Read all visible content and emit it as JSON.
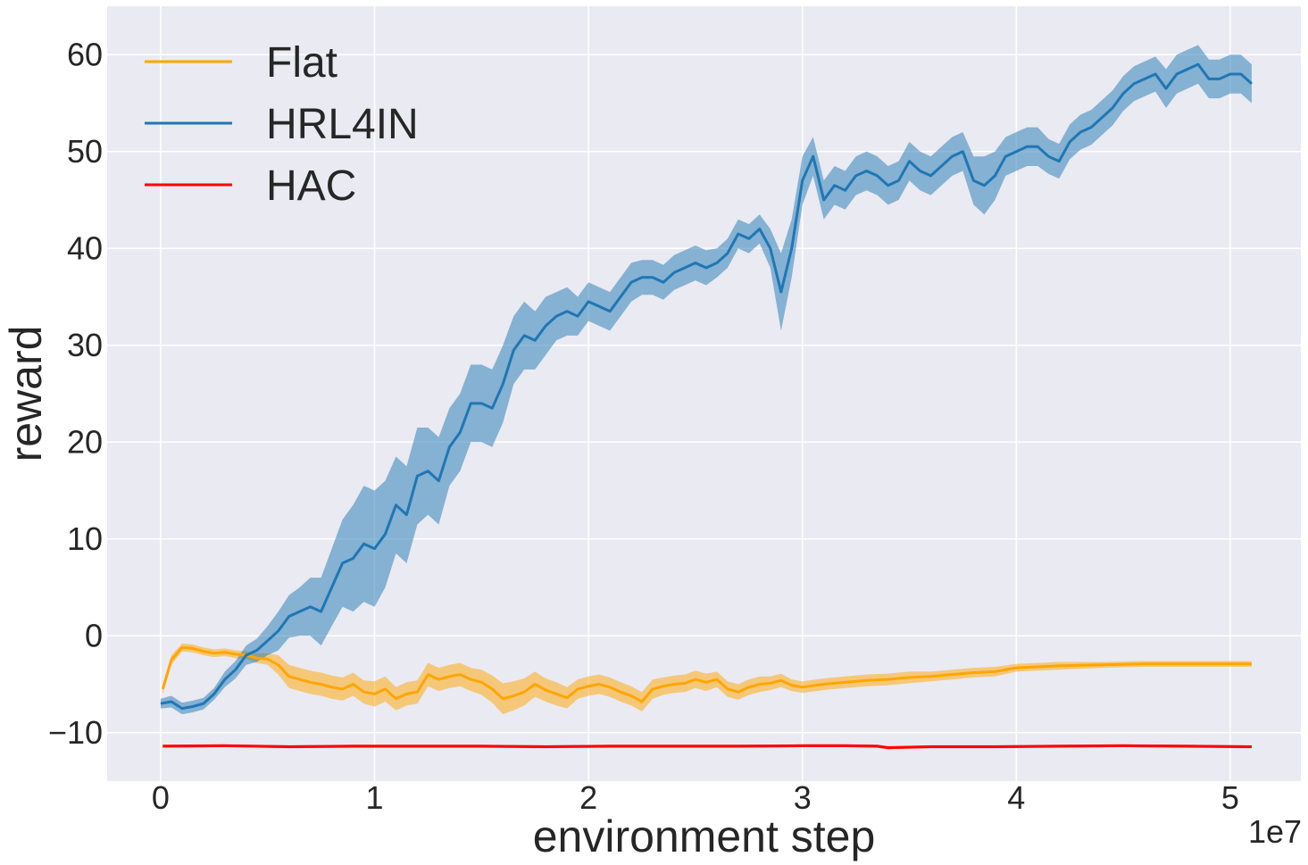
{
  "chart_data": {
    "type": "line",
    "xlabel": "environment step",
    "ylabel": "reward",
    "x_offset_label": "1e7",
    "xlim": [
      -0.25,
      5.33
    ],
    "ylim": [
      -15,
      65
    ],
    "xticks": [
      0,
      1,
      2,
      3,
      4,
      5
    ],
    "xtick_labels": [
      "0",
      "1",
      "2",
      "3",
      "4",
      "5"
    ],
    "yticks": [
      -10,
      0,
      10,
      20,
      30,
      40,
      50,
      60
    ],
    "ytick_labels": [
      "−10",
      "0",
      "10",
      "20",
      "30",
      "40",
      "50",
      "60"
    ],
    "grid": true,
    "legend_position": "upper-left",
    "background_color": "#eaeaf2",
    "series": [
      {
        "name": "Flat",
        "color": "#ffa500",
        "x": [
          0.01,
          0.05,
          0.1,
          0.15,
          0.2,
          0.25,
          0.3,
          0.35,
          0.4,
          0.45,
          0.5,
          0.55,
          0.6,
          0.65,
          0.7,
          0.75,
          0.8,
          0.85,
          0.9,
          0.95,
          1.0,
          1.05,
          1.1,
          1.15,
          1.2,
          1.25,
          1.3,
          1.35,
          1.4,
          1.45,
          1.5,
          1.55,
          1.6,
          1.65,
          1.7,
          1.75,
          1.8,
          1.85,
          1.9,
          1.95,
          2.0,
          2.05,
          2.1,
          2.15,
          2.2,
          2.25,
          2.3,
          2.35,
          2.4,
          2.45,
          2.5,
          2.55,
          2.6,
          2.65,
          2.7,
          2.75,
          2.8,
          2.85,
          2.9,
          2.95,
          3.0,
          3.1,
          3.2,
          3.3,
          3.4,
          3.5,
          3.6,
          3.7,
          3.8,
          3.9,
          4.0,
          4.2,
          4.4,
          4.6,
          4.8,
          5.0,
          5.1
        ],
        "values": [
          -5.5,
          -2.5,
          -1.2,
          -1.3,
          -1.6,
          -1.8,
          -1.7,
          -1.9,
          -2.0,
          -2.3,
          -2.4,
          -3.0,
          -4.2,
          -4.5,
          -4.8,
          -5.0,
          -5.3,
          -5.5,
          -5.0,
          -5.8,
          -6.0,
          -5.5,
          -6.5,
          -6.0,
          -5.8,
          -4.0,
          -4.5,
          -4.2,
          -4.0,
          -4.5,
          -4.8,
          -5.5,
          -6.5,
          -6.2,
          -5.8,
          -5.0,
          -5.6,
          -6.0,
          -6.4,
          -5.5,
          -5.2,
          -5.0,
          -5.3,
          -5.8,
          -6.2,
          -6.8,
          -5.5,
          -5.2,
          -5.0,
          -4.9,
          -4.5,
          -4.8,
          -4.5,
          -5.5,
          -5.8,
          -5.3,
          -5.0,
          -4.9,
          -4.6,
          -5.1,
          -5.3,
          -5.0,
          -4.8,
          -4.6,
          -4.5,
          -4.3,
          -4.2,
          -4.0,
          -3.8,
          -3.7,
          -3.3,
          -3.1,
          -3.0,
          -2.9,
          -2.9,
          -2.9,
          -2.9
        ],
        "spread": [
          0.5,
          0.5,
          0.4,
          0.4,
          0.4,
          0.4,
          0.4,
          0.4,
          0.4,
          0.5,
          0.6,
          1.0,
          1.2,
          1.2,
          1.2,
          1.2,
          1.2,
          1.2,
          1.2,
          1.2,
          1.3,
          1.3,
          1.2,
          1.2,
          1.2,
          1.2,
          1.2,
          1.2,
          1.2,
          1.2,
          1.3,
          1.4,
          1.6,
          1.5,
          1.4,
          1.3,
          1.2,
          1.2,
          1.1,
          1.0,
          1.0,
          1.0,
          1.0,
          1.0,
          1.0,
          1.0,
          1.0,
          0.9,
          0.9,
          0.9,
          0.9,
          0.9,
          0.8,
          0.8,
          0.8,
          0.8,
          0.8,
          0.7,
          0.7,
          0.6,
          0.6,
          0.6,
          0.6,
          0.6,
          0.6,
          0.6,
          0.5,
          0.5,
          0.5,
          0.5,
          0.4,
          0.4,
          0.3,
          0.3,
          0.3,
          0.3,
          0.3
        ]
      },
      {
        "name": "HRL4IN",
        "color": "#1f77b4",
        "x": [
          0.0,
          0.05,
          0.1,
          0.15,
          0.2,
          0.25,
          0.3,
          0.35,
          0.4,
          0.45,
          0.5,
          0.55,
          0.6,
          0.65,
          0.7,
          0.75,
          0.8,
          0.85,
          0.9,
          0.95,
          1.0,
          1.05,
          1.1,
          1.15,
          1.2,
          1.25,
          1.3,
          1.35,
          1.4,
          1.45,
          1.5,
          1.55,
          1.6,
          1.65,
          1.7,
          1.75,
          1.8,
          1.85,
          1.9,
          1.95,
          2.0,
          2.05,
          2.1,
          2.15,
          2.2,
          2.25,
          2.3,
          2.35,
          2.4,
          2.45,
          2.5,
          2.55,
          2.6,
          2.65,
          2.7,
          2.75,
          2.8,
          2.85,
          2.9,
          2.95,
          3.0,
          3.05,
          3.1,
          3.15,
          3.2,
          3.25,
          3.3,
          3.35,
          3.4,
          3.45,
          3.5,
          3.55,
          3.6,
          3.65,
          3.7,
          3.75,
          3.8,
          3.85,
          3.9,
          3.95,
          4.0,
          4.05,
          4.1,
          4.15,
          4.2,
          4.25,
          4.3,
          4.35,
          4.4,
          4.45,
          4.5,
          4.55,
          4.6,
          4.65,
          4.7,
          4.75,
          4.8,
          4.85,
          4.9,
          4.95,
          5.0,
          5.05,
          5.1
        ],
        "values": [
          -7.0,
          -6.8,
          -7.5,
          -7.3,
          -7.0,
          -6.0,
          -4.5,
          -3.5,
          -2.0,
          -1.5,
          -0.5,
          0.5,
          2.0,
          2.5,
          3.0,
          2.5,
          5.0,
          7.5,
          8.0,
          9.5,
          9.0,
          10.5,
          13.5,
          12.5,
          16.5,
          17.0,
          16.0,
          19.5,
          21.0,
          24.0,
          24.0,
          23.5,
          26.0,
          29.5,
          31.0,
          30.5,
          32.0,
          33.0,
          33.5,
          33.0,
          34.5,
          34.0,
          33.5,
          35.0,
          36.5,
          37.0,
          37.0,
          36.5,
          37.5,
          38.0,
          38.5,
          38.0,
          38.5,
          39.5,
          41.5,
          41.0,
          42.0,
          40.0,
          35.5,
          40.0,
          47.0,
          49.5,
          45.0,
          46.5,
          46.0,
          47.5,
          48.0,
          47.5,
          46.5,
          47.0,
          49.0,
          48.0,
          47.5,
          48.5,
          49.5,
          50.0,
          47.0,
          46.5,
          47.5,
          49.5,
          50.0,
          50.5,
          50.5,
          49.5,
          49.0,
          51.0,
          52.0,
          52.5,
          53.5,
          54.5,
          56.0,
          57.0,
          57.5,
          58.0,
          56.5,
          58.0,
          58.5,
          59.0,
          57.5,
          57.5,
          58.0,
          58.0,
          57.0
        ],
        "spread": [
          0.5,
          0.6,
          0.6,
          0.6,
          0.6,
          0.6,
          0.8,
          0.9,
          1.0,
          1.2,
          1.5,
          2.0,
          2.2,
          2.5,
          3.0,
          3.5,
          4.0,
          4.5,
          5.5,
          6.0,
          6.0,
          5.5,
          5.0,
          5.0,
          5.0,
          4.5,
          4.5,
          4.0,
          4.0,
          4.0,
          4.0,
          4.0,
          4.0,
          3.5,
          3.5,
          3.0,
          3.0,
          2.5,
          2.5,
          2.0,
          2.0,
          2.0,
          2.0,
          2.0,
          2.0,
          1.8,
          1.8,
          1.8,
          1.8,
          1.8,
          1.8,
          1.8,
          1.5,
          1.5,
          1.5,
          1.5,
          1.5,
          2.0,
          4.0,
          3.0,
          2.5,
          2.0,
          2.0,
          2.0,
          2.0,
          2.0,
          2.0,
          2.0,
          2.0,
          2.0,
          2.0,
          2.0,
          2.0,
          2.0,
          2.0,
          2.0,
          2.5,
          3.0,
          2.5,
          2.0,
          2.0,
          2.0,
          2.0,
          1.8,
          1.8,
          1.8,
          1.8,
          1.8,
          1.8,
          1.8,
          1.8,
          1.8,
          1.8,
          1.8,
          2.0,
          2.0,
          2.0,
          2.0,
          2.0,
          2.0,
          2.0,
          2.0,
          2.0
        ]
      },
      {
        "name": "HAC",
        "color": "#ff0000",
        "x": [
          0.01,
          0.3,
          0.6,
          0.9,
          1.2,
          1.5,
          1.8,
          2.1,
          2.4,
          2.7,
          3.0,
          3.2,
          3.35,
          3.4,
          3.6,
          3.9,
          4.2,
          4.5,
          4.8,
          5.1
        ],
        "values": [
          -11.4,
          -11.35,
          -11.45,
          -11.4,
          -11.4,
          -11.4,
          -11.45,
          -11.4,
          -11.4,
          -11.4,
          -11.35,
          -11.35,
          -11.4,
          -11.55,
          -11.45,
          -11.45,
          -11.4,
          -11.35,
          -11.4,
          -11.45
        ],
        "spread": [
          0.15,
          0.15,
          0.15,
          0.15,
          0.15,
          0.15,
          0.15,
          0.15,
          0.15,
          0.15,
          0.15,
          0.15,
          0.15,
          0.15,
          0.15,
          0.15,
          0.15,
          0.15,
          0.15,
          0.15
        ]
      }
    ]
  }
}
